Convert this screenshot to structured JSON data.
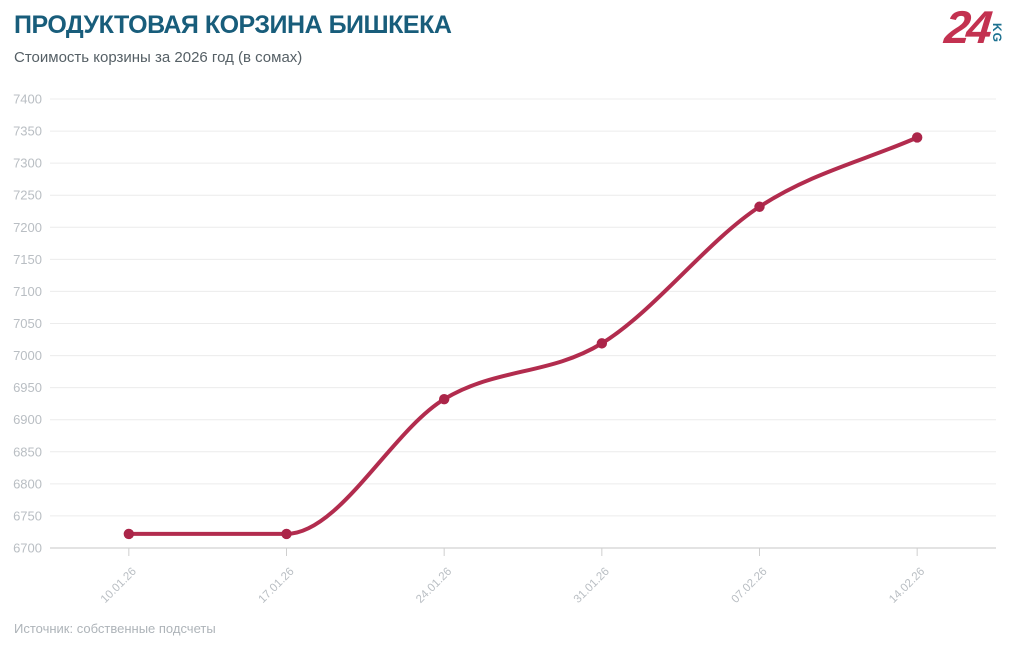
{
  "logo": {
    "number": "24",
    "suffix": "KG"
  },
  "footer": {
    "source": "Источник: собственные подсчеты"
  },
  "colors": {
    "title": "#185d7b",
    "subtitle": "#566066",
    "line": "#b22c4e",
    "marker": "#ab2549",
    "logo_red": "#c33150",
    "logo_teal": "#1d7190",
    "axis_label": "#b9bec3",
    "muted": "#aeb4b9",
    "gridline": "#ececec",
    "axis_line": "#d2d2d2",
    "tick": "#cfcfcf"
  },
  "chart_data": {
    "type": "line",
    "title": "ПРОДУКТОВАЯ КОРЗИНА БИШКЕКА",
    "subtitle": "Стоимость корзины за 2026 год (в сомах)",
    "categories": [
      "10.01.26",
      "17.01.26",
      "24.01.26",
      "31.01.26",
      "07.02.26",
      "14.02.26"
    ],
    "series": [
      {
        "name": "Стоимость корзины",
        "values": [
          6722,
          6722,
          6932,
          7019,
          7232,
          7340
        ]
      }
    ],
    "xlabel": "",
    "ylabel": "",
    "ylim": [
      6700,
      7400
    ],
    "ytick_step": 50,
    "grid": "horizontal",
    "legend": "none",
    "marker": "circle",
    "curve": "monotone"
  }
}
